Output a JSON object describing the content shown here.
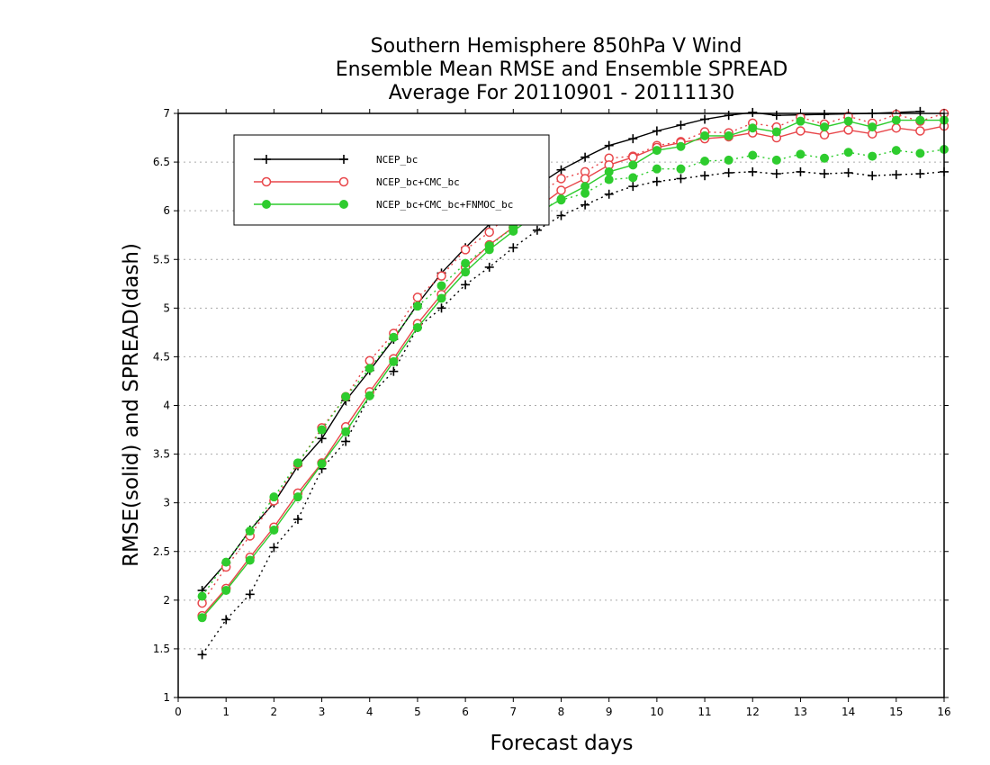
{
  "chart_data": {
    "type": "line",
    "title_lines": [
      "Southern Hemisphere 850hPa V Wind",
      "Ensemble Mean RMSE and Ensemble SPREAD",
      "Average For 20110901 - 20111130"
    ],
    "xlabel": "Forecast days",
    "ylabel": "RMSE(solid) and SPREAD(dash)",
    "xlim": [
      0,
      16
    ],
    "ylim": [
      1,
      7
    ],
    "x_ticks": [
      "0",
      "1",
      "2",
      "3",
      "4",
      "5",
      "6",
      "7",
      "8",
      "9",
      "10",
      "11",
      "12",
      "13",
      "14",
      "15",
      "16"
    ],
    "y_ticks": [
      "1",
      "1.5",
      "2",
      "2.5",
      "3",
      "3.5",
      "4",
      "4.5",
      "5",
      "5.5",
      "6",
      "6.5",
      "7"
    ],
    "grid": "horizontal dotted",
    "legend_position": "top-left inside",
    "x": [
      0.5,
      1,
      1.5,
      2,
      2.5,
      3,
      3.5,
      4,
      4.5,
      5,
      5.5,
      6,
      6.5,
      7,
      7.5,
      8,
      8.5,
      9,
      9.5,
      10,
      10.5,
      11,
      11.5,
      12,
      12.5,
      13,
      13.5,
      14,
      14.5,
      15,
      15.5,
      16
    ],
    "series": [
      {
        "name": "NCEP_bc",
        "color": "#000000",
        "marker": "plus",
        "rmse": [
          2.1,
          2.38,
          2.72,
          3.0,
          3.38,
          3.66,
          4.05,
          4.36,
          4.68,
          5.04,
          5.36,
          5.62,
          5.86,
          6.08,
          6.26,
          6.42,
          6.55,
          6.67,
          6.74,
          6.82,
          6.88,
          6.94,
          6.98,
          7.01,
          6.98,
          7.03,
          6.99,
          7.04,
          7.0,
          7.05,
          7.02,
          7.07
        ],
        "spread": [
          1.44,
          1.8,
          2.06,
          2.54,
          2.83,
          3.35,
          3.63,
          4.1,
          4.35,
          4.8,
          5.0,
          5.24,
          5.42,
          5.62,
          5.8,
          5.95,
          6.06,
          6.17,
          6.25,
          6.3,
          6.33,
          6.36,
          6.39,
          6.4,
          6.38,
          6.4,
          6.38,
          6.39,
          6.36,
          6.37,
          6.38,
          6.4
        ]
      },
      {
        "name": "NCEP_bc+CMC_bc",
        "color": "#e8464a",
        "marker": "circle",
        "rmse": [
          1.84,
          2.12,
          2.44,
          2.75,
          3.1,
          3.41,
          3.78,
          4.14,
          4.48,
          4.84,
          5.14,
          5.42,
          5.65,
          5.83,
          6.03,
          6.21,
          6.33,
          6.47,
          6.55,
          6.65,
          6.7,
          6.74,
          6.76,
          6.8,
          6.75,
          6.82,
          6.78,
          6.83,
          6.79,
          6.85,
          6.82,
          6.87
        ],
        "spread": [
          1.97,
          2.34,
          2.66,
          3.02,
          3.4,
          3.77,
          4.09,
          4.46,
          4.74,
          5.11,
          5.33,
          5.6,
          5.78,
          6.0,
          6.16,
          6.33,
          6.4,
          6.54,
          6.56,
          6.67,
          6.71,
          6.81,
          6.8,
          6.9,
          6.86,
          6.96,
          6.89,
          6.97,
          6.9,
          6.99,
          6.92,
          7.0
        ]
      },
      {
        "name": "NCEP_bc+CMC_bc+FNMOC_bc",
        "color": "#2ecc2e",
        "marker": "dot",
        "rmse": [
          1.82,
          2.1,
          2.41,
          2.72,
          3.06,
          3.4,
          3.73,
          4.1,
          4.45,
          4.8,
          5.1,
          5.37,
          5.6,
          5.79,
          5.97,
          6.12,
          6.25,
          6.4,
          6.47,
          6.62,
          6.66,
          6.77,
          6.77,
          6.85,
          6.81,
          6.92,
          6.86,
          6.92,
          6.86,
          6.93,
          6.93,
          6.93
        ],
        "spread": [
          2.04,
          2.39,
          2.71,
          3.06,
          3.41,
          3.75,
          4.09,
          4.38,
          4.7,
          5.02,
          5.23,
          5.46,
          5.64,
          5.83,
          6.0,
          6.11,
          6.18,
          6.32,
          6.34,
          6.43,
          6.43,
          6.51,
          6.52,
          6.57,
          6.52,
          6.58,
          6.54,
          6.6,
          6.56,
          6.62,
          6.59,
          6.63
        ]
      }
    ]
  }
}
